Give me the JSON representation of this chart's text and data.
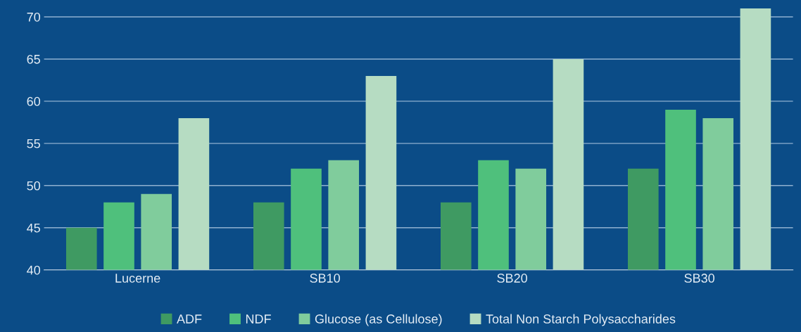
{
  "chart_data": {
    "type": "bar",
    "categories": [
      "Lucerne",
      "SB10",
      "SB20",
      "SB30"
    ],
    "series": [
      {
        "name": "ADF",
        "color": "#3f9a62",
        "values": [
          45,
          48,
          48,
          52
        ]
      },
      {
        "name": "NDF",
        "color": "#4fc07c",
        "values": [
          48,
          52,
          53,
          59
        ]
      },
      {
        "name": "Glucose (as Cellulose)",
        "color": "#80cc9c",
        "values": [
          49,
          53,
          52,
          58
        ]
      },
      {
        "name": "Total Non Starch Polysaccharides",
        "color": "#b6dcc2",
        "values": [
          58,
          63,
          65,
          71
        ]
      }
    ],
    "ylim": [
      40,
      72
    ],
    "yticks": [
      40,
      45,
      50,
      55,
      60,
      65,
      70
    ],
    "grid": "y",
    "legend": "bottom"
  }
}
